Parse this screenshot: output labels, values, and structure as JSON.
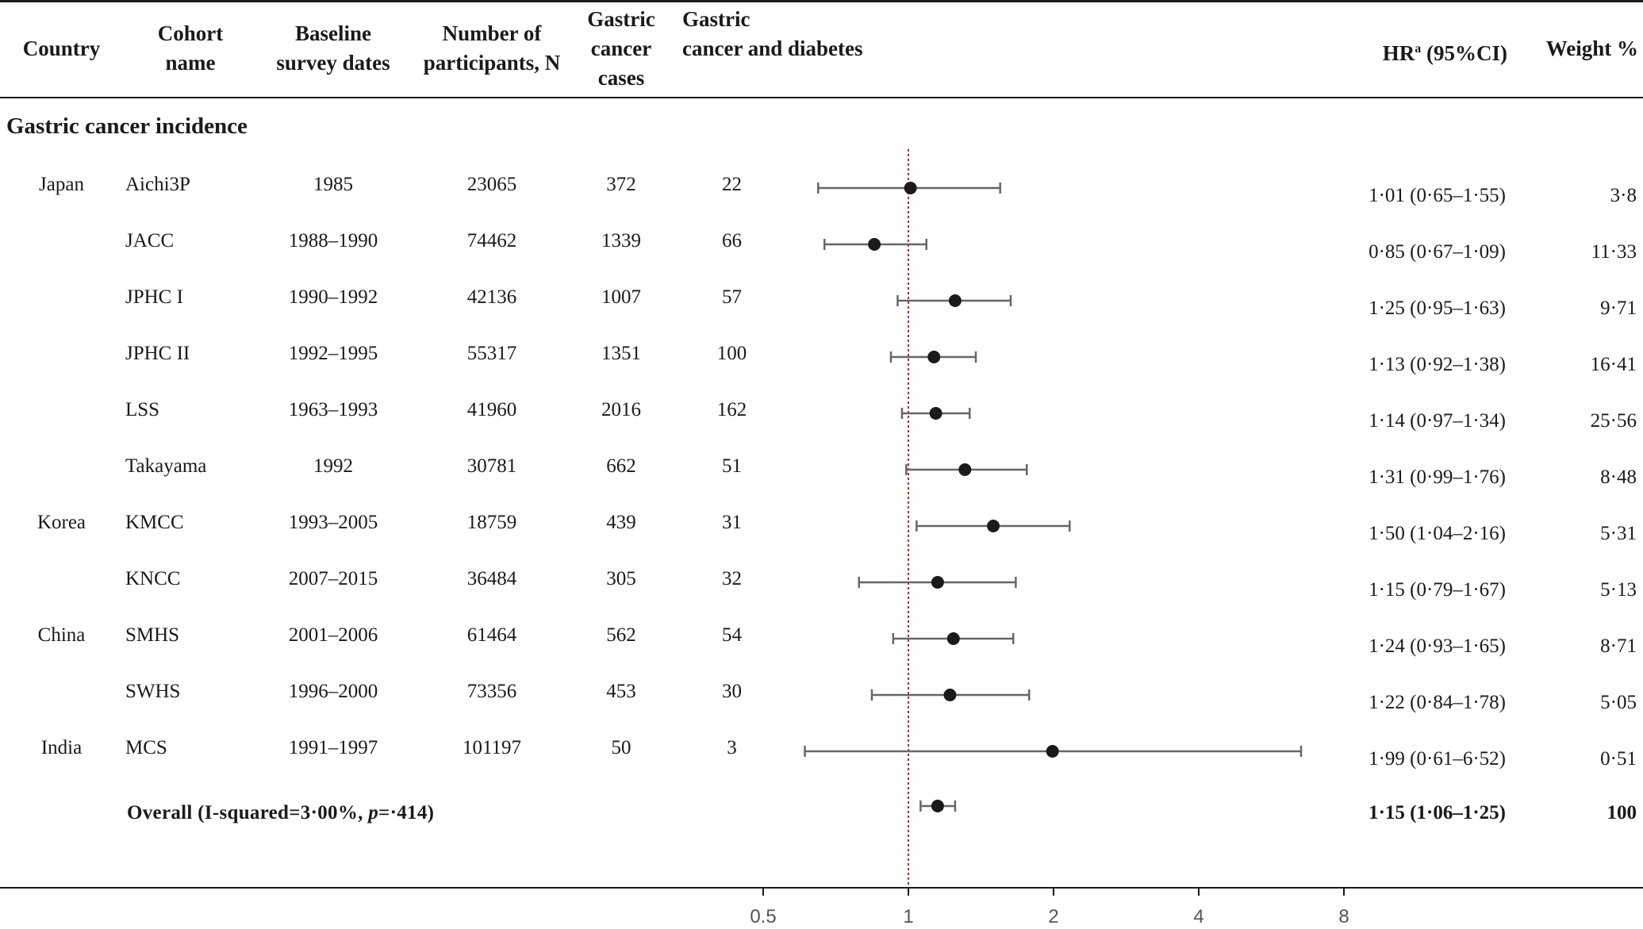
{
  "headers": {
    "country": [
      "Country"
    ],
    "cohort": [
      "Cohort",
      "name"
    ],
    "baseline": [
      "Baseline",
      "survey dates"
    ],
    "number": [
      "Number of",
      "participants, N"
    ],
    "cases": [
      "Gastric",
      "cancer",
      "cases"
    ],
    "diabetes": [
      "Gastric",
      "cancer and diabetes"
    ],
    "hr_main": "HR",
    "hr_sup": "a",
    "hr_rest": " (95%CI)",
    "weight": "Weight %"
  },
  "section_title": "Gastric cancer incidence",
  "rows": [
    {
      "country": "Japan",
      "cohort": "Aichi3P",
      "dates": "1985",
      "n": "23065",
      "cases": "372",
      "diab": "22",
      "hr": "1·01 (0·65–1·55)",
      "weight": "3·8"
    },
    {
      "country": "",
      "cohort": "JACC",
      "dates": "1988–1990",
      "n": "74462",
      "cases": "1339",
      "diab": "66",
      "hr": "0·85 (0·67–1·09)",
      "weight": "11·33"
    },
    {
      "country": "",
      "cohort": "JPHC I",
      "dates": "1990–1992",
      "n": "42136",
      "cases": "1007",
      "diab": "57",
      "hr": "1·25 (0·95–1·63)",
      "weight": "9·71"
    },
    {
      "country": "",
      "cohort": "JPHC II",
      "dates": "1992–1995",
      "n": "55317",
      "cases": "1351",
      "diab": "100",
      "hr": "1·13 (0·92–1·38)",
      "weight": "16·41"
    },
    {
      "country": "",
      "cohort": "LSS",
      "dates": "1963–1993",
      "n": "41960",
      "cases": "2016",
      "diab": "162",
      "hr": "1·14 (0·97–1·34)",
      "weight": "25·56"
    },
    {
      "country": "",
      "cohort": "Takayama",
      "dates": "1992",
      "n": "30781",
      "cases": "662",
      "diab": "51",
      "hr": "1·31 (0·99–1·76)",
      "weight": "8·48"
    },
    {
      "country": "Korea",
      "cohort": "KMCC",
      "dates": "1993–2005",
      "n": "18759",
      "cases": "439",
      "diab": "31",
      "hr": "1·50 (1·04–2·16)",
      "weight": "5·31"
    },
    {
      "country": "",
      "cohort": "KNCC",
      "dates": "2007–2015",
      "n": "36484",
      "cases": "305",
      "diab": "32",
      "hr": "1·15 (0·79–1·67)",
      "weight": "5·13"
    },
    {
      "country": "China",
      "cohort": "SMHS",
      "dates": "2001–2006",
      "n": "61464",
      "cases": "562",
      "diab": "54",
      "hr": "1·24 (0·93–1·65)",
      "weight": "8·71"
    },
    {
      "country": "",
      "cohort": "SWHS",
      "dates": "1996–2000",
      "n": "73356",
      "cases": "453",
      "diab": "30",
      "hr": "1·22 (0·84–1·78)",
      "weight": "5·05"
    },
    {
      "country": "India",
      "cohort": "MCS",
      "dates": "1991–1997",
      "n": "101197",
      "cases": "50",
      "diab": "3",
      "hr": "1·99 (0·61–6·52)",
      "weight": "0·51"
    }
  ],
  "overall": {
    "label_a": "Overall (I-squared=3·00%, ",
    "label_p": "p",
    "label_b": "=·414)",
    "hr": "1·15 (1·06–1·25)",
    "weight": "100"
  },
  "chart_data": {
    "type": "forest",
    "x_scale": "log",
    "xlim": [
      0.5,
      8
    ],
    "x_ticks": [
      0.5,
      1,
      2,
      4,
      8
    ],
    "x_tick_labels": [
      "0.5",
      "1",
      "2",
      "4",
      "8"
    ],
    "reference_line": 1,
    "colors": {
      "point": "#1a1a1a",
      "ci": "#666666",
      "reference": "#c0282d",
      "axis": "#1a1a1a"
    },
    "studies": [
      {
        "label": "Aichi3P",
        "hr": 1.01,
        "lo": 0.65,
        "hi": 1.55
      },
      {
        "label": "JACC",
        "hr": 0.85,
        "lo": 0.67,
        "hi": 1.09
      },
      {
        "label": "JPHC I",
        "hr": 1.25,
        "lo": 0.95,
        "hi": 1.63
      },
      {
        "label": "JPHC II",
        "hr": 1.13,
        "lo": 0.92,
        "hi": 1.38
      },
      {
        "label": "LSS",
        "hr": 1.14,
        "lo": 0.97,
        "hi": 1.34
      },
      {
        "label": "Takayama",
        "hr": 1.31,
        "lo": 0.99,
        "hi": 1.76
      },
      {
        "label": "KMCC",
        "hr": 1.5,
        "lo": 1.04,
        "hi": 2.16
      },
      {
        "label": "KNCC",
        "hr": 1.15,
        "lo": 0.79,
        "hi": 1.67
      },
      {
        "label": "SMHS",
        "hr": 1.24,
        "lo": 0.93,
        "hi": 1.65
      },
      {
        "label": "SWHS",
        "hr": 1.22,
        "lo": 0.84,
        "hi": 1.78
      },
      {
        "label": "MCS",
        "hr": 1.99,
        "lo": 0.61,
        "hi": 6.52
      },
      {
        "label": "Overall",
        "hr": 1.15,
        "lo": 1.06,
        "hi": 1.25
      }
    ]
  }
}
